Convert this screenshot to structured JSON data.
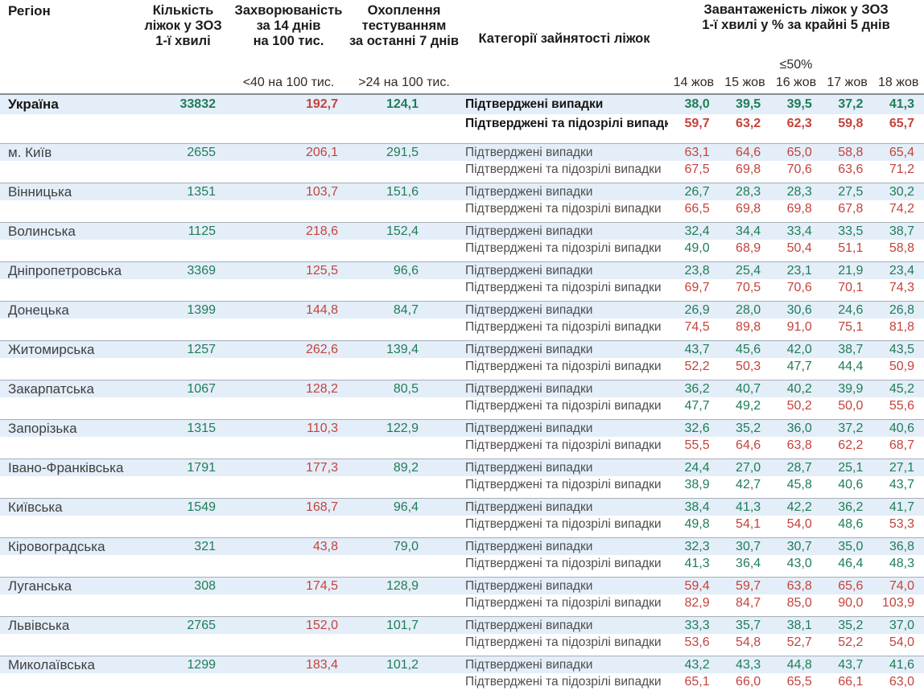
{
  "header": {
    "col_region": "Регіон",
    "col_beds_lines": [
      "Кількість",
      "ліжок у ЗОЗ",
      "1-ї хвилі"
    ],
    "col_incidence_lines": [
      "Захворюваність",
      "за 14 днів",
      "на 100 тис."
    ],
    "col_testing_lines": [
      "Охоплення",
      "тестуванням",
      "за останні 7 днів"
    ],
    "col_categories": "Категорії зайнятості ліжок",
    "col_occupancy_lines": [
      "Завантаженість ліжок у ЗОЗ",
      "1-ї хвилі у % за крайні 5 днів"
    ],
    "incidence_threshold_note": "<40 на 100 тис.",
    "testing_threshold_note": ">24 на 100 тис.",
    "occupancy_threshold_note": "≤50%",
    "dates": [
      "14 жов",
      "15 жов",
      "16 жов",
      "17 жов",
      "18 жов"
    ]
  },
  "category_labels": {
    "confirmed": "Підтверджені випадки",
    "confirmed_suspected": "Підтверджені та підозрілі випадки"
  },
  "thresholds": {
    "occupancy_green_below": 50,
    "incidence_green_below": 40,
    "testing_green_above": 24
  },
  "colors": {
    "green": "#1f7d56",
    "red": "#c4433c",
    "row_band": "#e4eef8"
  },
  "regions": [
    {
      "name": "Україна",
      "bold": true,
      "beds": "33832",
      "incidence": "192,7",
      "testing": "124,1",
      "confirmed": [
        "38,0",
        "39,5",
        "39,5",
        "37,2",
        "41,3"
      ],
      "confirmed_suspected": [
        "59,7",
        "63,2",
        "62,3",
        "59,8",
        "65,7"
      ]
    },
    {
      "name": "м. Київ",
      "bold": false,
      "beds": "2655",
      "incidence": "206,1",
      "testing": "291,5",
      "confirmed": [
        "63,1",
        "64,6",
        "65,0",
        "58,8",
        "65,4"
      ],
      "confirmed_suspected": [
        "67,5",
        "69,8",
        "70,6",
        "63,6",
        "71,2"
      ]
    },
    {
      "name": "Вінницька",
      "bold": false,
      "beds": "1351",
      "incidence": "103,7",
      "testing": "151,6",
      "confirmed": [
        "26,7",
        "28,3",
        "28,3",
        "27,5",
        "30,2"
      ],
      "confirmed_suspected": [
        "66,5",
        "69,8",
        "69,8",
        "67,8",
        "74,2"
      ]
    },
    {
      "name": "Волинська",
      "bold": false,
      "beds": "1125",
      "incidence": "218,6",
      "testing": "152,4",
      "confirmed": [
        "32,4",
        "34,4",
        "33,4",
        "33,5",
        "38,7"
      ],
      "confirmed_suspected": [
        "49,0",
        "68,9",
        "50,4",
        "51,1",
        "58,8"
      ]
    },
    {
      "name": "Дніпропетровська",
      "bold": false,
      "beds": "3369",
      "incidence": "125,5",
      "testing": "96,6",
      "confirmed": [
        "23,8",
        "25,4",
        "23,1",
        "21,9",
        "23,4"
      ],
      "confirmed_suspected": [
        "69,7",
        "70,5",
        "70,6",
        "70,1",
        "74,3"
      ]
    },
    {
      "name": "Донецька",
      "bold": false,
      "beds": "1399",
      "incidence": "144,8",
      "testing": "84,7",
      "confirmed": [
        "26,9",
        "28,0",
        "30,6",
        "24,6",
        "26,8"
      ],
      "confirmed_suspected": [
        "74,5",
        "89,8",
        "91,0",
        "75,1",
        "81,8"
      ]
    },
    {
      "name": "Житомирська",
      "bold": false,
      "beds": "1257",
      "incidence": "262,6",
      "testing": "139,4",
      "confirmed": [
        "43,7",
        "45,6",
        "42,0",
        "38,7",
        "43,5"
      ],
      "confirmed_suspected": [
        "52,2",
        "50,3",
        "47,7",
        "44,4",
        "50,9"
      ]
    },
    {
      "name": "Закарпатська",
      "bold": false,
      "beds": "1067",
      "incidence": "128,2",
      "testing": "80,5",
      "confirmed": [
        "36,2",
        "40,7",
        "40,2",
        "39,9",
        "45,2"
      ],
      "confirmed_suspected": [
        "47,7",
        "49,2",
        "50,2",
        "50,0",
        "55,6"
      ]
    },
    {
      "name": "Запорізька",
      "bold": false,
      "beds": "1315",
      "incidence": "110,3",
      "testing": "122,9",
      "confirmed": [
        "32,6",
        "35,2",
        "36,0",
        "37,2",
        "40,6"
      ],
      "confirmed_suspected": [
        "55,5",
        "64,6",
        "63,8",
        "62,2",
        "68,7"
      ]
    },
    {
      "name": "Івано-Франківська",
      "bold": false,
      "beds": "1791",
      "incidence": "177,3",
      "testing": "89,2",
      "confirmed": [
        "24,4",
        "27,0",
        "28,7",
        "25,1",
        "27,1"
      ],
      "confirmed_suspected": [
        "38,9",
        "42,7",
        "45,8",
        "40,6",
        "43,7"
      ]
    },
    {
      "name": "Київська",
      "bold": false,
      "beds": "1549",
      "incidence": "168,7",
      "testing": "96,4",
      "confirmed": [
        "38,4",
        "41,3",
        "42,2",
        "36,2",
        "41,7"
      ],
      "confirmed_suspected": [
        "49,8",
        "54,1",
        "54,0",
        "48,6",
        "53,3"
      ]
    },
    {
      "name": "Кіровоградська",
      "bold": false,
      "beds": "321",
      "incidence": "43,8",
      "testing": "79,0",
      "confirmed": [
        "32,3",
        "30,7",
        "30,7",
        "35,0",
        "36,8"
      ],
      "confirmed_suspected": [
        "41,3",
        "36,4",
        "43,0",
        "46,4",
        "48,3"
      ]
    },
    {
      "name": "Луганська",
      "bold": false,
      "beds": "308",
      "incidence": "174,5",
      "testing": "128,9",
      "confirmed": [
        "59,4",
        "59,7",
        "63,8",
        "65,6",
        "74,0"
      ],
      "confirmed_suspected": [
        "82,9",
        "84,7",
        "85,0",
        "90,0",
        "103,9"
      ]
    },
    {
      "name": "Львівська",
      "bold": false,
      "beds": "2765",
      "incidence": "152,0",
      "testing": "101,7",
      "confirmed": [
        "33,3",
        "35,7",
        "38,1",
        "35,2",
        "37,0"
      ],
      "confirmed_suspected": [
        "53,6",
        "54,8",
        "52,7",
        "52,2",
        "54,0"
      ]
    },
    {
      "name": "Миколаївська",
      "bold": false,
      "beds": "1299",
      "incidence": "183,4",
      "testing": "101,2",
      "confirmed": [
        "43,2",
        "43,3",
        "44,8",
        "43,7",
        "41,6"
      ],
      "confirmed_suspected": [
        "65,1",
        "66,0",
        "65,5",
        "66,1",
        "63,0"
      ]
    }
  ]
}
